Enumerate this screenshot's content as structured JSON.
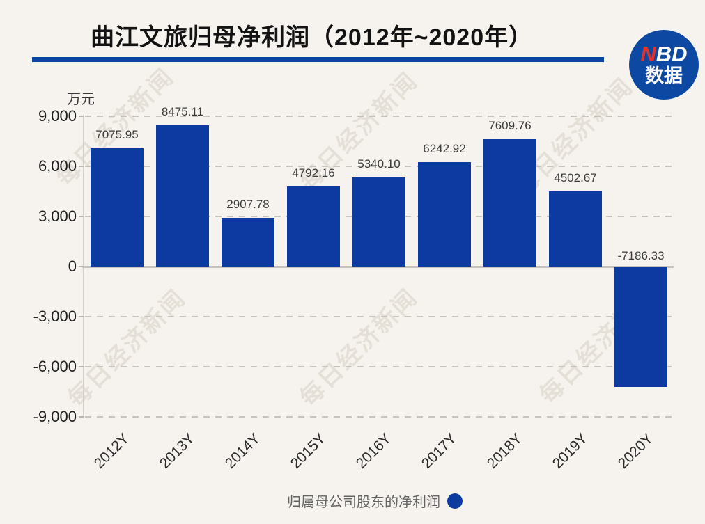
{
  "page": {
    "background": "#f6f3ee"
  },
  "header": {
    "title": "曲江文旅归母净利润（2012年~2020年）",
    "rule_color": "#0a47a0",
    "logo": {
      "n": "N",
      "bd": "BD",
      "line2": "数据",
      "bg": "#0d49a2",
      "n_color": "#e4312b"
    }
  },
  "watermark": {
    "text": "每日经济新闻"
  },
  "chart_data": {
    "type": "bar",
    "title": "曲江文旅归母净利润（2012年~2020年）",
    "unit": "万元",
    "categories": [
      "2012Y",
      "2013Y",
      "2014Y",
      "2015Y",
      "2016Y",
      "2017Y",
      "2018Y",
      "2019Y",
      "2020Y"
    ],
    "values": [
      7075.95,
      8475.11,
      2907.78,
      4792.16,
      5340.1,
      6242.92,
      7609.76,
      4502.67,
      -7186.33
    ],
    "value_labels": [
      "7075.95",
      "8475.11",
      "2907.78",
      "4792.16",
      "5340.10",
      "6242.92",
      "7609.76",
      "4502.67",
      "-7186.33"
    ],
    "y_ticks": [
      "9,000",
      "6,000",
      "3,000",
      "0",
      "-3,000",
      "-6,000",
      "-9,000"
    ],
    "y_tick_values": [
      9000,
      6000,
      3000,
      0,
      -3000,
      -6000,
      -9000
    ],
    "ylim": [
      -9000,
      9000
    ],
    "grid": true,
    "bar_color": "#0d3aa1",
    "legend": {
      "label": "归属母公司股东的净利润",
      "marker_color": "#0d3aa1",
      "position": "bottom"
    }
  }
}
